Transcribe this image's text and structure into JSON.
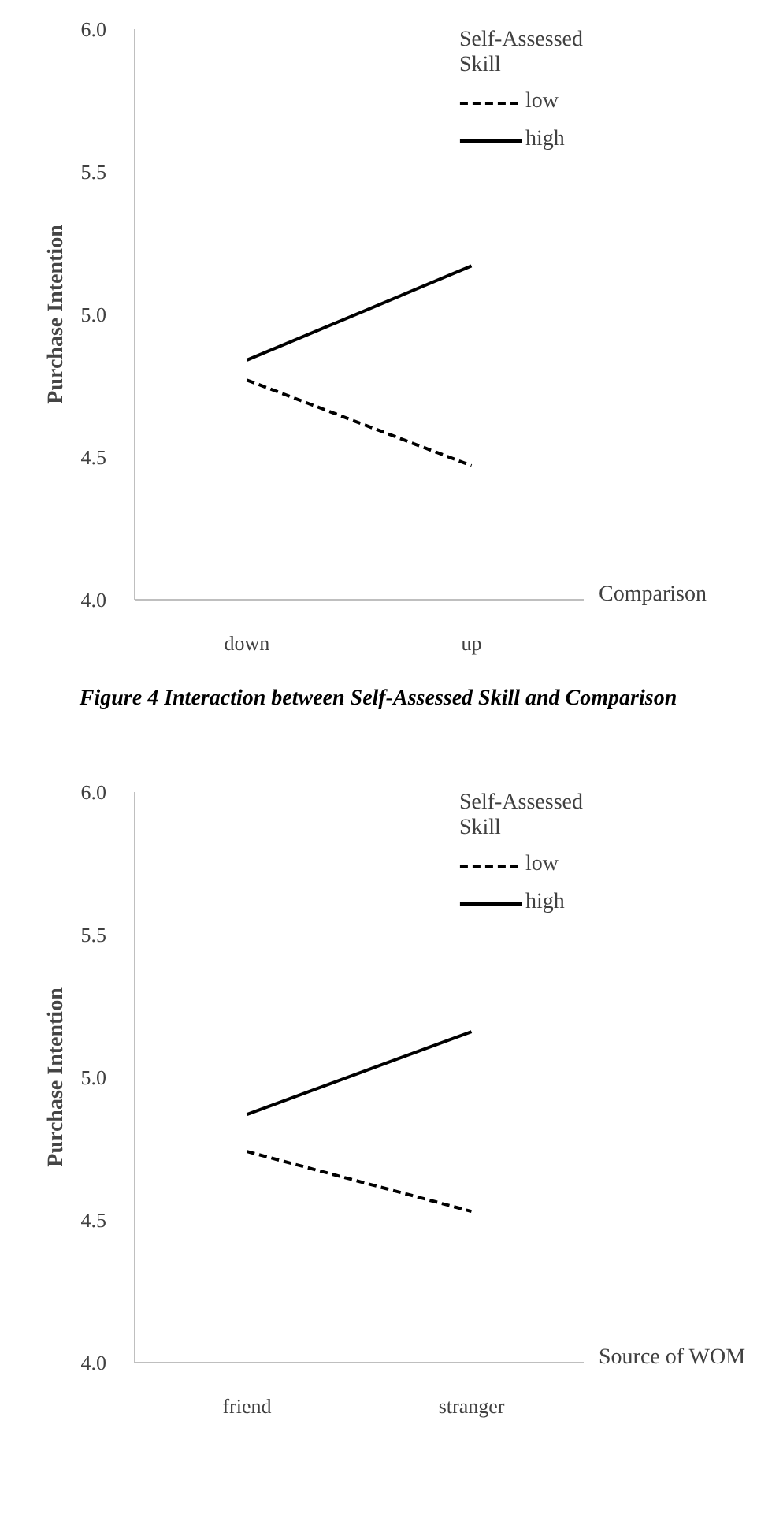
{
  "chart_data": [
    {
      "type": "line",
      "categories": [
        "down",
        "up"
      ],
      "xlabel": "Comparison",
      "ylabel": "Purchase Intention",
      "ylim": [
        4.0,
        6.0
      ],
      "yticks": [
        {
          "value": 4.0,
          "label": "4.0"
        },
        {
          "value": 4.5,
          "label": "4.5"
        },
        {
          "value": 5.0,
          "label": "5.0"
        },
        {
          "value": 5.5,
          "label": "5.5"
        },
        {
          "value": 6.0,
          "label": "6.0"
        }
      ],
      "grid": false,
      "legend": "top right",
      "legend_title": "Self-Assessed Skill",
      "marker": "none",
      "series": [
        {
          "name": "low",
          "color": "#000000",
          "line_style": "dashed",
          "values": [
            4.77,
            4.47
          ]
        },
        {
          "name": "high",
          "color": "#000000",
          "line_style": "solid",
          "values": [
            4.84,
            5.17
          ]
        }
      ],
      "annotations": [
        "Figure 4 Interaction between Self-Assessed Skill and Comparison"
      ]
    },
    {
      "type": "line",
      "categories": [
        "friend",
        "stranger"
      ],
      "xlabel": "Source of WOM",
      "ylabel": "Purchase Intention",
      "ylim": [
        4.0,
        6.0
      ],
      "yticks": [
        {
          "value": 4.0,
          "label": "4.0"
        },
        {
          "value": 4.5,
          "label": "4.5"
        },
        {
          "value": 5.0,
          "label": "5.0"
        },
        {
          "value": 5.5,
          "label": "5.5"
        },
        {
          "value": 6.0,
          "label": "6.0"
        }
      ],
      "grid": false,
      "legend": "top right",
      "legend_title": "Self-Assessed Skill",
      "marker": "none",
      "series": [
        {
          "name": "low",
          "color": "#000000",
          "line_style": "dashed",
          "values": [
            4.74,
            4.53
          ]
        },
        {
          "name": "high",
          "color": "#000000",
          "line_style": "solid",
          "values": [
            4.87,
            5.16
          ]
        }
      ]
    }
  ]
}
